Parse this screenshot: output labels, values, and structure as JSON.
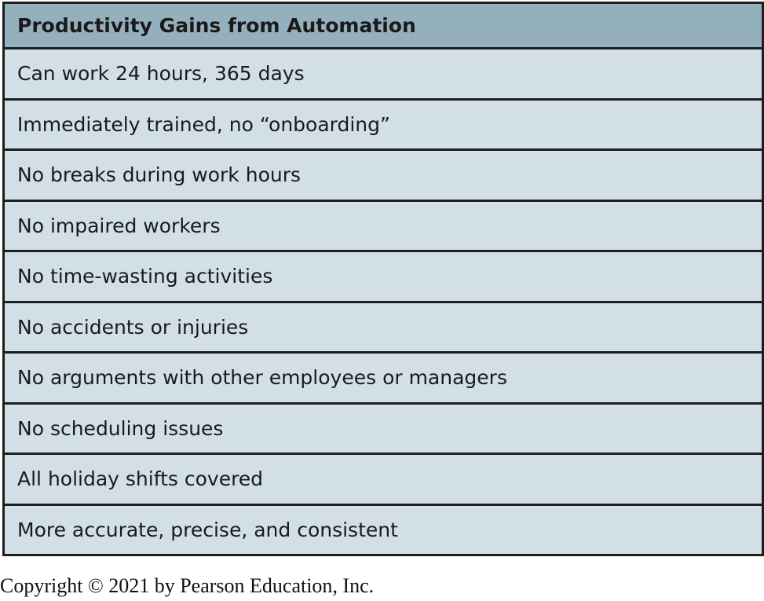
{
  "table": {
    "header": "Productivity Gains from Automation",
    "rows": [
      "Can work 24 hours, 365 days",
      "Immediately trained, no “onboarding”",
      "No breaks during work hours",
      "No impaired workers",
      "No time-wasting activities",
      "No accidents or injuries",
      "No arguments with other employees or managers",
      "No scheduling issues",
      "All holiday shifts covered",
      "More accurate, precise, and consistent"
    ]
  },
  "footer": {
    "copyright": "Copyright © 2021 by Pearson Education, Inc."
  },
  "colors": {
    "header_bg": "#94b0bd",
    "row_bg": "#d3dfe6",
    "border": "#1e1e1e"
  }
}
